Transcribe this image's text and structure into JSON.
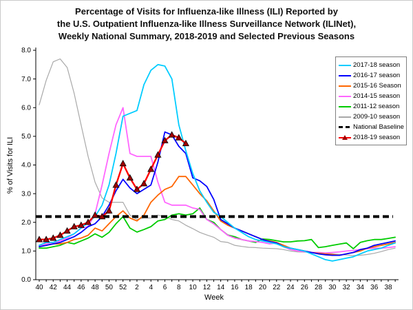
{
  "title": {
    "lines": [
      "Percentage of Visits for Influenza-like Illness (ILI) Reported by",
      "the U.S. Outpatient Influenza-like Illness Surveillance Network (ILINet),",
      "Weekly National Summary, 2018-2019 and Selected Previous Seasons"
    ]
  },
  "axes": {
    "x_label": "Week",
    "y_label": "% of Visits for ILI",
    "y_ticks": [
      "0.0",
      "1.0",
      "2.0",
      "3.0",
      "4.0",
      "5.0",
      "6.0",
      "7.0",
      "8.0"
    ],
    "x_tick_labels": [
      40,
      42,
      44,
      46,
      48,
      50,
      52,
      2,
      4,
      6,
      8,
      10,
      12,
      14,
      16,
      18,
      20,
      22,
      24,
      26,
      28,
      30,
      32,
      34,
      36,
      38
    ]
  },
  "legend": {
    "items": [
      {
        "label": "2017-18 season",
        "color": "#00CCFF",
        "style": "solid"
      },
      {
        "label": "2016-17 season",
        "color": "#0000FF",
        "style": "solid"
      },
      {
        "label": "2015-16 Season",
        "color": "#FF6600",
        "style": "solid"
      },
      {
        "label": "2014-15 season",
        "color": "#FF66FF",
        "style": "solid"
      },
      {
        "label": "2011-12 season",
        "color": "#00CC00",
        "style": "solid"
      },
      {
        "label": "2009-10 season",
        "color": "#A8A8A8",
        "style": "solid"
      },
      {
        "label": "National Baseline",
        "color": "#000000",
        "style": "dashed"
      },
      {
        "label": "2018-19 season",
        "color": "#FF0000",
        "style": "marker",
        "marker_color": "#A00000"
      }
    ]
  },
  "chart_data": {
    "type": "line",
    "title": "Percentage of Visits for ILI, ILINet Weekly National Summary",
    "xlabel": "Week",
    "ylabel": "% of Visits for ILI",
    "ylim": [
      0,
      8
    ],
    "grid": false,
    "legend_position": "upper right",
    "weeks": [
      40,
      41,
      42,
      43,
      44,
      45,
      46,
      47,
      48,
      49,
      50,
      51,
      52,
      1,
      2,
      3,
      4,
      5,
      6,
      7,
      8,
      9,
      10,
      11,
      12,
      13,
      14,
      15,
      16,
      17,
      18,
      19,
      20,
      21,
      22,
      23,
      24,
      25,
      26,
      27,
      28,
      29,
      30,
      31,
      32,
      33,
      34,
      35,
      36,
      37,
      38,
      39
    ],
    "baseline": {
      "name": "National Baseline",
      "value": 2.2,
      "color": "#000000",
      "style": "dashed"
    },
    "series": [
      {
        "name": "2009-10 season",
        "color": "#A8A8A8",
        "width": 1.2,
        "values": [
          6.1,
          6.95,
          7.6,
          7.7,
          7.4,
          6.5,
          5.4,
          4.3,
          3.4,
          2.85,
          2.7,
          2.7,
          2.7,
          2.25,
          2.1,
          2.15,
          2.15,
          2.25,
          2.2,
          2.1,
          2.05,
          1.9,
          1.78,
          1.65,
          1.56,
          1.48,
          1.33,
          1.3,
          1.2,
          1.16,
          1.13,
          1.12,
          1.1,
          1.09,
          1.08,
          1.05,
          1.0,
          0.97,
          0.96,
          0.95,
          0.93,
          0.92,
          0.9,
          0.88,
          0.86,
          0.84,
          0.85,
          0.88,
          0.92,
          0.98,
          1.05,
          1.1
        ]
      },
      {
        "name": "2011-12 season",
        "color": "#00CC00",
        "width": 1.8,
        "values": [
          1.1,
          1.1,
          1.15,
          1.2,
          1.3,
          1.25,
          1.35,
          1.45,
          1.6,
          1.48,
          1.65,
          1.95,
          2.2,
          1.8,
          1.66,
          1.75,
          1.85,
          2.05,
          2.1,
          2.25,
          2.3,
          2.25,
          2.3,
          2.5,
          2.1,
          2.0,
          1.75,
          1.56,
          1.5,
          1.4,
          1.35,
          1.3,
          1.42,
          1.4,
          1.36,
          1.32,
          1.32,
          1.35,
          1.36,
          1.4,
          1.12,
          1.15,
          1.2,
          1.24,
          1.28,
          1.08,
          1.3,
          1.36,
          1.4,
          1.4,
          1.44,
          1.48
        ]
      },
      {
        "name": "2014-15 season",
        "color": "#FF66FF",
        "width": 1.8,
        "values": [
          1.2,
          1.25,
          1.3,
          1.35,
          1.45,
          1.6,
          1.8,
          1.85,
          2.3,
          3.3,
          4.4,
          5.4,
          6.0,
          4.4,
          4.3,
          4.3,
          4.3,
          3.4,
          2.7,
          2.6,
          2.6,
          2.6,
          2.5,
          2.45,
          2.1,
          1.95,
          1.75,
          1.55,
          1.45,
          1.4,
          1.35,
          1.33,
          1.3,
          1.25,
          1.28,
          1.15,
          1.05,
          1.0,
          0.98,
          0.95,
          0.95,
          0.93,
          0.95,
          0.97,
          1.0,
          1.02,
          1.05,
          1.08,
          1.1,
          1.1,
          1.12,
          1.15
        ]
      },
      {
        "name": "2015-16 Season",
        "color": "#FF6600",
        "width": 1.8,
        "values": [
          1.15,
          1.2,
          1.25,
          1.25,
          1.3,
          1.4,
          1.45,
          1.55,
          1.8,
          1.7,
          1.95,
          2.2,
          2.4,
          2.15,
          2.05,
          2.25,
          2.7,
          2.95,
          3.15,
          3.25,
          3.6,
          3.6,
          3.3,
          3.0,
          2.75,
          2.4,
          2.05,
          1.9,
          1.8,
          1.7,
          1.6,
          1.5,
          1.4,
          1.35,
          1.3,
          1.2,
          1.1,
          1.05,
          1.0,
          0.95,
          0.92,
          0.9,
          0.88,
          0.85,
          0.9,
          0.95,
          1.0,
          1.1,
          1.15,
          1.2,
          1.25,
          1.3
        ]
      },
      {
        "name": "2016-17 season",
        "color": "#0000FF",
        "width": 1.8,
        "values": [
          1.15,
          1.2,
          1.25,
          1.3,
          1.4,
          1.5,
          1.65,
          1.85,
          1.95,
          2.2,
          2.6,
          3.1,
          3.5,
          3.2,
          3.0,
          3.15,
          3.3,
          4.1,
          5.15,
          5.05,
          4.65,
          4.4,
          3.55,
          3.45,
          3.25,
          2.8,
          2.1,
          1.95,
          1.8,
          1.7,
          1.6,
          1.5,
          1.4,
          1.33,
          1.28,
          1.15,
          1.1,
          1.05,
          1.0,
          0.95,
          0.9,
          0.87,
          0.85,
          0.85,
          0.9,
          0.95,
          1.05,
          1.1,
          1.2,
          1.25,
          1.3,
          1.35
        ]
      },
      {
        "name": "2017-18 season",
        "color": "#00CCFF",
        "width": 1.8,
        "values": [
          1.2,
          1.3,
          1.3,
          1.4,
          1.5,
          1.6,
          1.8,
          2.0,
          2.2,
          2.6,
          3.3,
          4.4,
          5.7,
          5.8,
          5.9,
          6.8,
          7.3,
          7.5,
          7.45,
          7.0,
          5.4,
          4.5,
          3.7,
          3.1,
          2.7,
          2.35,
          2.2,
          2.0,
          1.8,
          1.65,
          1.5,
          1.4,
          1.35,
          1.3,
          1.25,
          1.15,
          1.1,
          1.05,
          1.0,
          0.9,
          0.8,
          0.7,
          0.65,
          0.7,
          0.75,
          0.8,
          0.9,
          1.0,
          1.05,
          1.1,
          1.2,
          1.28
        ]
      },
      {
        "name": "2018-19 season",
        "color": "#FF0000",
        "width": 2.4,
        "marker": "triangle",
        "marker_color": "#A00000",
        "values": [
          1.4,
          1.4,
          1.45,
          1.55,
          1.7,
          1.85,
          1.9,
          2.0,
          2.25,
          2.2,
          2.4,
          3.3,
          4.05,
          3.55,
          3.15,
          3.35,
          3.85,
          4.35,
          4.85,
          5.05,
          4.95,
          4.75
        ]
      }
    ]
  }
}
